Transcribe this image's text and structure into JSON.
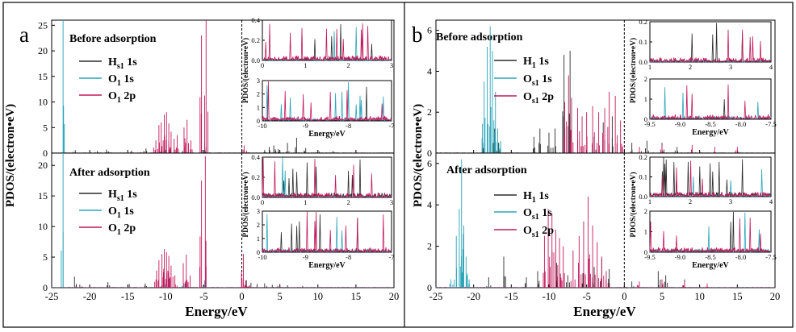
{
  "figure": {
    "panels": [
      {
        "letter": "a",
        "ylabel": "PDOS/(electron•eV)",
        "xlabel": "Energy/eV",
        "x_ticks": [
          "-25",
          "-20",
          "-15",
          "-10",
          "-5",
          "0",
          "5",
          "10",
          "15",
          "20"
        ],
        "top_label": "Before adsorption",
        "bottom_label": "After adsorption",
        "top_y_ticks": [
          "0",
          "5",
          "10",
          "15",
          "20",
          "25"
        ],
        "bottom_y_ticks": [
          "0",
          "5",
          "10",
          "15",
          "20"
        ],
        "legend": [
          {
            "base": "H",
            "sub": "s1",
            "orb": " 1s",
            "color": "#2b2b2b"
          },
          {
            "base": "O",
            "sub": "1",
            "orb": " 1s",
            "color": "#2aa5b8"
          },
          {
            "base": "O",
            "sub": "1",
            "orb": " 2p",
            "color": "#c2185b"
          }
        ],
        "insets": {
          "upper_x_ticks": [
            "0",
            "1",
            "2",
            "3"
          ],
          "upper_y_ticks": [
            "0.0",
            "0.2",
            "0.4"
          ],
          "lower_x_ticks": [
            "-10",
            "-9",
            "-8",
            "-7"
          ],
          "lower_y_ticks": [
            "0",
            "1",
            "2",
            "3"
          ],
          "ylabel": "PDOS/(electron•eV)",
          "xlabel": "Energy/eV"
        }
      },
      {
        "letter": "b",
        "ylabel": "PDOS/(electron•eV)",
        "xlabel": "Energy/eV",
        "x_ticks": [
          "-25",
          "-20",
          "-15",
          "-10",
          "-5",
          "0",
          "5",
          "10",
          "15",
          "20"
        ],
        "top_label": "Before adsorption",
        "bottom_label": "After adsorption",
        "top_y_ticks": [
          "0",
          "2",
          "4",
          "6"
        ],
        "bottom_y_ticks": [
          "0",
          "2",
          "4",
          "6"
        ],
        "legend": [
          {
            "base": "H",
            "sub": "1",
            "orb": " 1s",
            "color": "#2b2b2b"
          },
          {
            "base": "O",
            "sub": "s1",
            "orb": " 1s",
            "color": "#2aa5b8"
          },
          {
            "base": "O",
            "sub": "s1",
            "orb": " 2p",
            "color": "#c2185b"
          }
        ],
        "insets": {
          "upper_x_ticks": [
            "1",
            "2",
            "3",
            "4"
          ],
          "upper_y_ticks": [
            "0.0",
            "0.1",
            "0.2"
          ],
          "lower_x_ticks": [
            "-9.5",
            "-9.0",
            "-8.5",
            "-8.0",
            "-7.5"
          ],
          "lower_y_ticks": [
            "0",
            "1",
            "2"
          ],
          "ylabel": "PDOS/(electron•eV)",
          "xlabel": "Energy/eV"
        }
      }
    ]
  },
  "chart_data": [
    {
      "type": "line",
      "panel": "a (Before adsorption)",
      "xlabel": "Energy/eV",
      "ylabel": "PDOS/(electron•eV)",
      "xlim": [
        -25,
        20
      ],
      "ylim": [
        0,
        26
      ],
      "fermi_level": 0,
      "series": [
        {
          "name": "Hs1 1s",
          "color": "#2b2b2b",
          "peaks": [
            [
              -21.9,
              0.6
            ],
            [
              -19.0,
              0.4
            ],
            [
              -17.8,
              0.7
            ],
            [
              -14.5,
              0.5
            ],
            [
              -12.6,
              0.9
            ],
            [
              -10.6,
              0.5
            ],
            [
              -10.0,
              0.6
            ],
            [
              -7.8,
              0.4
            ],
            [
              -5.2,
              0.6
            ],
            [
              -4.7,
              1.2
            ],
            [
              3.0,
              0.6
            ],
            [
              3.6,
              1.2
            ],
            [
              4.2,
              1.5
            ],
            [
              4.8,
              0.8
            ],
            [
              6.0,
              2.0
            ],
            [
              7.2,
              3.0
            ],
            [
              8.4,
              1.0
            ],
            [
              10.0,
              0.6
            ],
            [
              12.0,
              0.4
            ]
          ]
        },
        {
          "name": "O1 1s",
          "color": "#2aa5b8",
          "peaks": [
            [
              -23.5,
              26
            ],
            [
              -10.2,
              2.0
            ],
            [
              -9.6,
              2.4
            ],
            [
              -7.6,
              0.9
            ],
            [
              -4.9,
              2.0
            ]
          ]
        },
        {
          "name": "O1 2p",
          "color": "#c2185b",
          "peaks": [
            [
              -11.3,
              2.5
            ],
            [
              -10.9,
              5.5
            ],
            [
              -10.6,
              6.0
            ],
            [
              -10.2,
              7.5
            ],
            [
              -9.9,
              8.0
            ],
            [
              -9.6,
              5.8
            ],
            [
              -9.3,
              4.2
            ],
            [
              -8.9,
              2.8
            ],
            [
              -8.5,
              3.5
            ],
            [
              -7.6,
              5.0
            ],
            [
              -7.2,
              6.5
            ],
            [
              -6.7,
              2.5
            ],
            [
              -5.3,
              23.0
            ],
            [
              -4.7,
              26.5
            ],
            [
              0.3,
              1.5
            ],
            [
              0.6,
              0.5
            ]
          ]
        }
      ]
    },
    {
      "type": "line",
      "panel": "a (After adsorption)",
      "xlabel": "Energy/eV",
      "ylabel": "PDOS/(electron•eV)",
      "xlim": [
        -25,
        20
      ],
      "ylim": [
        0,
        22
      ],
      "fermi_level": 0,
      "series": [
        {
          "name": "Hs1 1s",
          "color": "#2b2b2b",
          "peaks": [
            [
              -22.0,
              1.8
            ],
            [
              -21.3,
              0.5
            ],
            [
              -17.6,
              0.9
            ],
            [
              -14.8,
              0.6
            ],
            [
              -12.7,
              0.7
            ],
            [
              -10.5,
              0.4
            ],
            [
              -7.6,
              0.5
            ],
            [
              -5.0,
              0.4
            ],
            [
              0.6,
              1.2
            ],
            [
              1.2,
              0.8
            ],
            [
              2.0,
              0.6
            ],
            [
              3.0,
              0.7
            ],
            [
              4.0,
              0.5
            ],
            [
              5.0,
              0.6
            ],
            [
              6.0,
              0.4
            ],
            [
              8.0,
              0.3
            ]
          ]
        },
        {
          "name": "O1 1s",
          "color": "#2aa5b8",
          "peaks": [
            [
              -23.5,
              22
            ],
            [
              -10.2,
              1.5
            ],
            [
              -9.5,
              1.5
            ],
            [
              -7.6,
              0.7
            ],
            [
              -4.9,
              1.2
            ]
          ]
        },
        {
          "name": "O1 2p",
          "color": "#c2185b",
          "peaks": [
            [
              -11.2,
              2.8
            ],
            [
              -10.9,
              4.5
            ],
            [
              -10.5,
              5.5
            ],
            [
              -10.2,
              6.3
            ],
            [
              -9.9,
              5.8
            ],
            [
              -9.6,
              5.2
            ],
            [
              -9.3,
              3.6
            ],
            [
              -8.8,
              2.0
            ],
            [
              -7.7,
              4.0
            ],
            [
              -7.3,
              5.4
            ],
            [
              -6.8,
              2.0
            ],
            [
              -5.3,
              17.5
            ],
            [
              -4.8,
              21.5
            ],
            [
              0.2,
              5.5
            ],
            [
              0.5,
              1.2
            ],
            [
              1.0,
              0.4
            ]
          ]
        }
      ]
    },
    {
      "type": "line",
      "panel": "b (Before adsorption)",
      "xlabel": "Energy/eV",
      "ylabel": "PDOS/(electron•eV)",
      "xlim": [
        -25,
        20
      ],
      "ylim": [
        0,
        6.5
      ],
      "fermi_level": 0,
      "series": [
        {
          "name": "H1 1s",
          "color": "#2b2b2b",
          "peaks": [
            [
              -18.8,
              0.5
            ],
            [
              -17.2,
              1.2
            ],
            [
              -16.7,
              0.5
            ],
            [
              -12.0,
              0.8
            ],
            [
              -11.2,
              1.2
            ],
            [
              -10.0,
              1.0
            ],
            [
              -9.2,
              1.2
            ],
            [
              -8.0,
              4.8
            ],
            [
              -7.2,
              5.0
            ],
            [
              -4.0,
              0.8
            ],
            [
              -2.8,
              1.5
            ],
            [
              -1.6,
              1.8
            ],
            [
              1.0,
              0.5
            ],
            [
              3.0,
              0.6
            ],
            [
              5.0,
              0.5
            ],
            [
              7.0,
              0.3
            ]
          ]
        },
        {
          "name": "Os1 1s",
          "color": "#2aa5b8",
          "peaks": [
            [
              -18.6,
              3.5
            ],
            [
              -18.2,
              5.2
            ],
            [
              -17.8,
              6.2
            ],
            [
              -17.5,
              5.0
            ],
            [
              -17.1,
              3.0
            ],
            [
              -16.8,
              1.2
            ],
            [
              -16.4,
              0.6
            ]
          ]
        },
        {
          "name": "Os1 2p",
          "color": "#c2185b",
          "peaks": [
            [
              -7.9,
              2.5
            ],
            [
              -7.4,
              3.8
            ],
            [
              -7.0,
              2.7
            ],
            [
              -6.2,
              2.2
            ],
            [
              -5.6,
              1.8
            ],
            [
              -5.0,
              2.0
            ],
            [
              -4.2,
              2.3
            ],
            [
              -3.4,
              2.0
            ],
            [
              -2.6,
              2.2
            ],
            [
              -2.0,
              3.0
            ],
            [
              -1.2,
              2.8
            ],
            [
              -0.5,
              1.6
            ],
            [
              2.0,
              0.3
            ],
            [
              5.0,
              0.4
            ],
            [
              9.0,
              0.4
            ],
            [
              12.0,
              0.3
            ],
            [
              15.0,
              0.3
            ]
          ]
        }
      ]
    },
    {
      "type": "line",
      "panel": "b (After adsorption)",
      "xlabel": "Energy/eV",
      "ylabel": "PDOS/(electron•eV)",
      "xlim": [
        -25,
        20
      ],
      "ylim": [
        0,
        6.5
      ],
      "fermi_level": 0,
      "series": [
        {
          "name": "H1 1s",
          "color": "#2b2b2b",
          "peaks": [
            [
              -18.0,
              0.5
            ],
            [
              -16.0,
              1.5
            ],
            [
              -13.0,
              0.5
            ],
            [
              -11.5,
              0.8
            ],
            [
              -9.0,
              1.2
            ],
            [
              -7.5,
              0.6
            ],
            [
              -5.5,
              0.7
            ],
            [
              -4.0,
              1.0
            ],
            [
              -3.0,
              1.4
            ],
            [
              -2.0,
              0.9
            ],
            [
              1.0,
              0.3
            ],
            [
              4.5,
              0.8
            ],
            [
              5.5,
              0.6
            ],
            [
              8.0,
              0.4
            ]
          ]
        },
        {
          "name": "Os1 1s",
          "color": "#2aa5b8",
          "peaks": [
            [
              -23.0,
              0.4
            ],
            [
              -22.3,
              2.5
            ],
            [
              -21.9,
              3.8
            ],
            [
              -21.6,
              6.2
            ],
            [
              -21.3,
              3.0
            ],
            [
              -21.0,
              1.5
            ],
            [
              -20.6,
              0.4
            ]
          ]
        },
        {
          "name": "Os1 2p",
          "color": "#c2185b",
          "peaks": [
            [
              -10.6,
              2.5
            ],
            [
              -10.1,
              3.8
            ],
            [
              -9.6,
              3.6
            ],
            [
              -9.1,
              2.8
            ],
            [
              -8.6,
              2.4
            ],
            [
              -8.1,
              2.0
            ],
            [
              -6.8,
              1.8
            ],
            [
              -6.0,
              2.5
            ],
            [
              -5.4,
              3.2
            ],
            [
              -4.8,
              4.4
            ],
            [
              -4.2,
              3.0
            ],
            [
              -3.6,
              2.2
            ],
            [
              -3.0,
              1.5
            ],
            [
              -2.4,
              0.8
            ],
            [
              2.0,
              0.3
            ],
            [
              5.0,
              0.4
            ],
            [
              8.0,
              0.3
            ],
            [
              11.0,
              0.2
            ]
          ]
        }
      ]
    }
  ]
}
